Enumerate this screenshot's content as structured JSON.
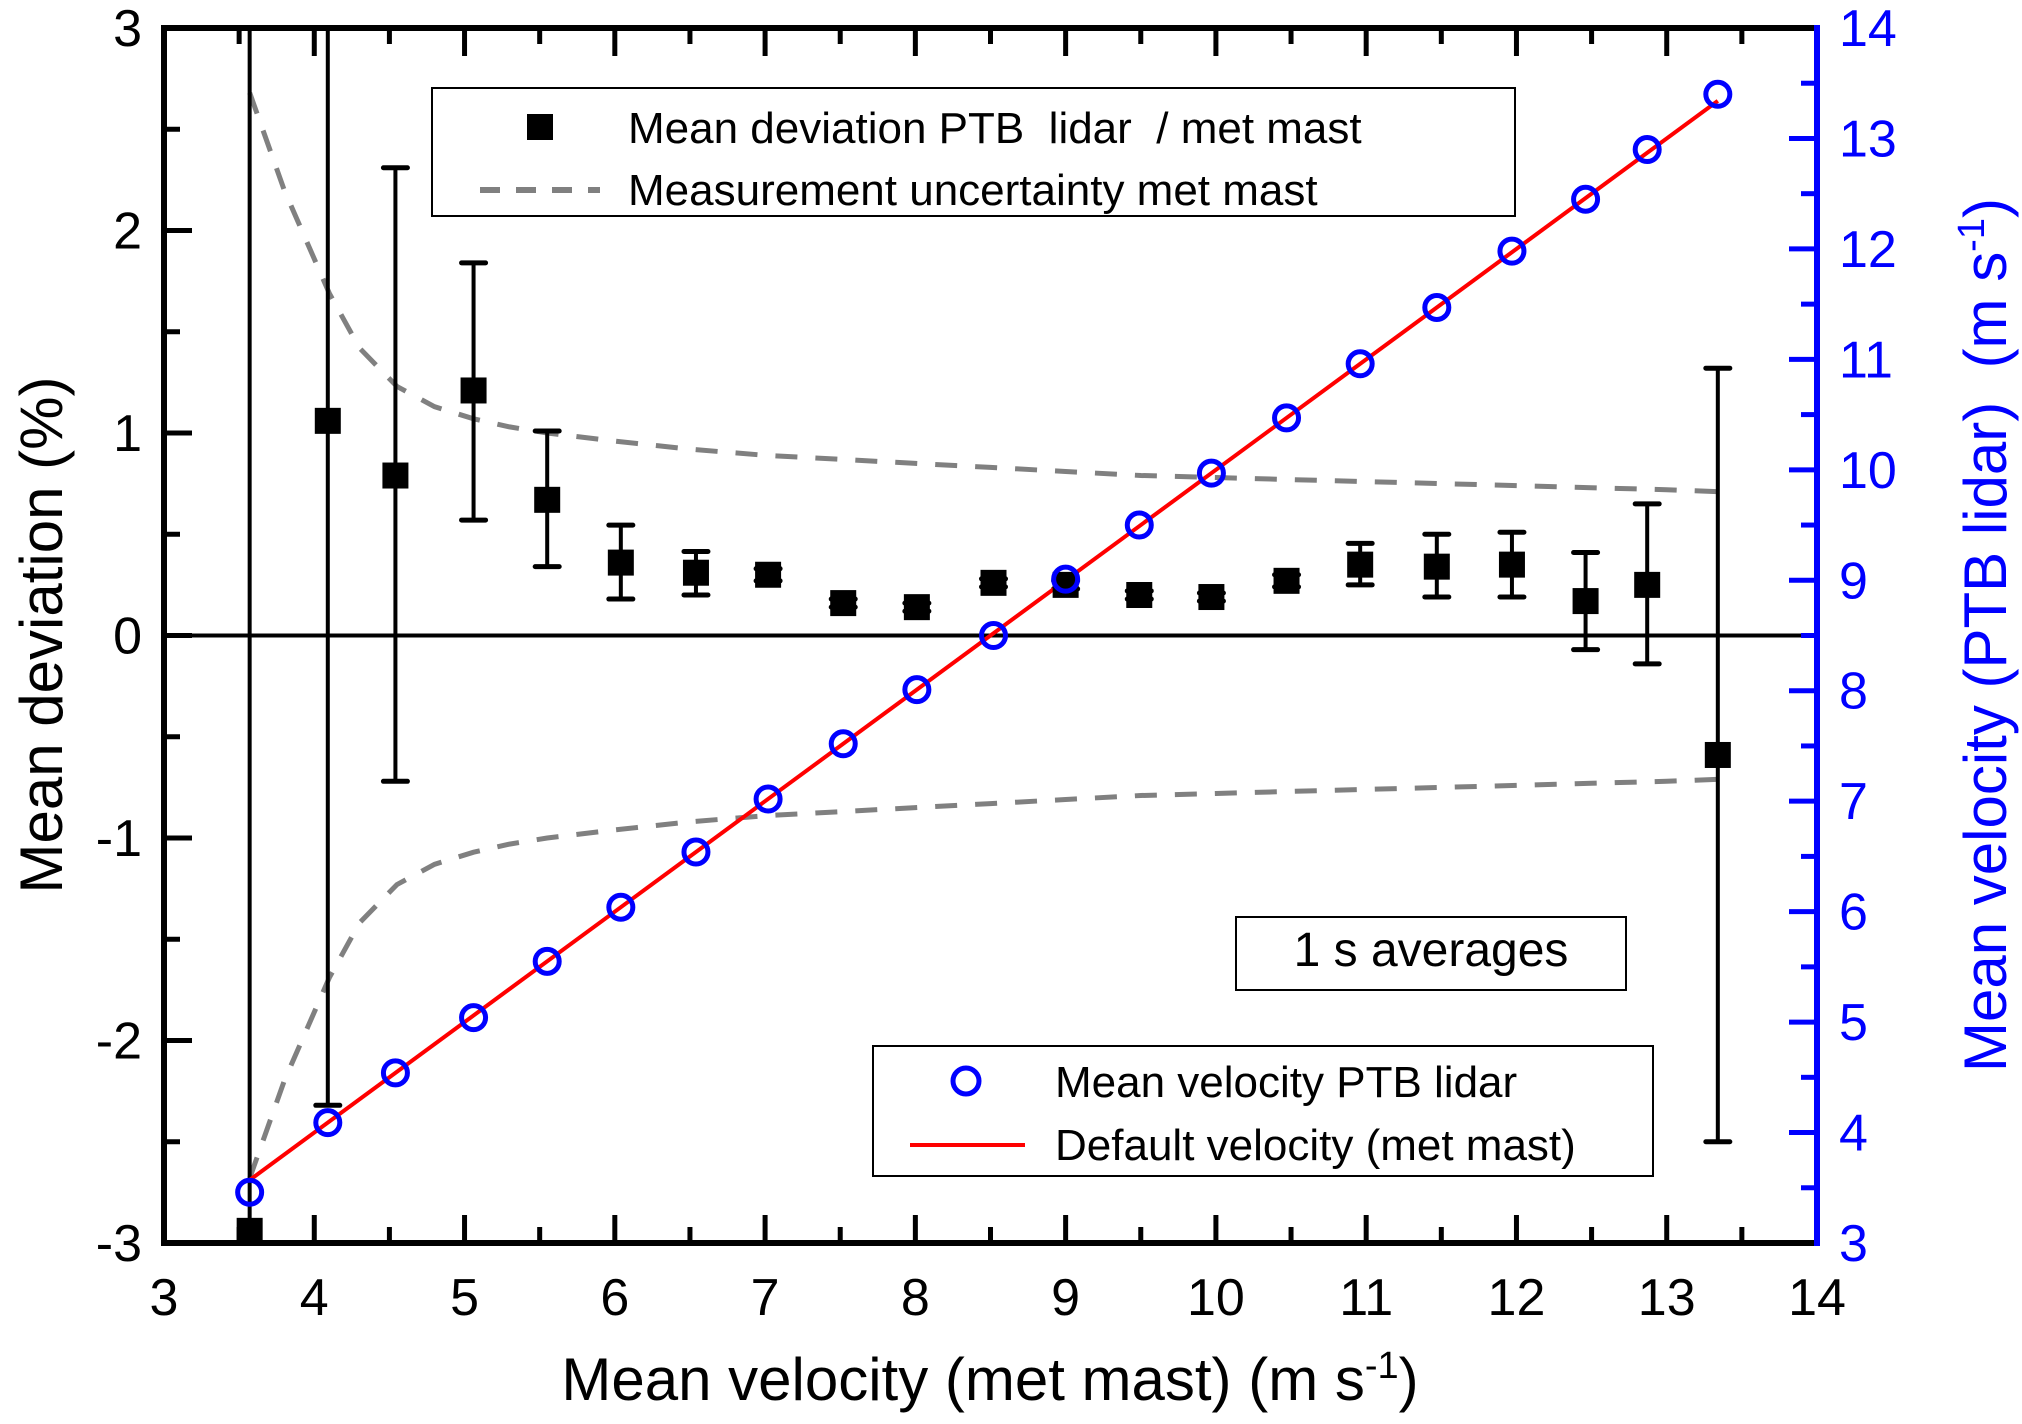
{
  "chart_data": {
    "type": "scatter",
    "title": "",
    "xlabel": "Mean velocity (met mast) (m s",
    "xlabel_sup": "-1",
    "xlabel_end": ")",
    "ylabel_left": "Mean deviation (%)",
    "ylabel_right": "Mean velocity (PTB lidar)  (m s",
    "ylabel_right_sup": "-1",
    "ylabel_right_end": ")",
    "xlim": [
      3,
      14
    ],
    "ylim_left": [
      -3,
      3
    ],
    "ylim_right": [
      3,
      14
    ],
    "x_ticks": [
      "3",
      "4",
      "5",
      "6",
      "7",
      "8",
      "9",
      "10",
      "11",
      "12",
      "13",
      "14"
    ],
    "y_left_ticks": [
      "-3",
      "-2",
      "-1",
      "0",
      "1",
      "2",
      "3"
    ],
    "y_right_ticks": [
      "3",
      "4",
      "5",
      "6",
      "7",
      "8",
      "9",
      "10",
      "11",
      "12",
      "13",
      "14"
    ],
    "grid": false,
    "zero_line": true,
    "colors": {
      "deviation": "#000000",
      "uncertainty": "#808080",
      "lidar": "#0000ff",
      "default_line": "#ff0000",
      "right_axis": "#0000ff"
    },
    "series": [
      {
        "name": "Mean deviation PTB  lidar  / met mast",
        "axis": "left",
        "marker": "filled-square",
        "x": [
          3.57,
          4.09,
          4.54,
          5.06,
          5.55,
          6.04,
          6.54,
          7.02,
          7.52,
          8.01,
          8.52,
          9.0,
          9.49,
          9.97,
          10.47,
          10.96,
          11.47,
          11.97,
          12.46,
          12.87,
          13.34
        ],
        "y": [
          -2.94,
          1.06,
          0.79,
          1.21,
          0.67,
          0.36,
          0.31,
          0.3,
          0.16,
          0.14,
          0.26,
          0.25,
          0.2,
          0.19,
          0.27,
          0.35,
          0.34,
          0.35,
          0.17,
          0.25,
          -0.59
        ],
        "err_low": [
          -3.0,
          -2.32,
          -0.72,
          0.57,
          0.34,
          0.18,
          0.2,
          0.27,
          0.14,
          0.12,
          0.24,
          0.23,
          0.18,
          0.17,
          0.24,
          0.25,
          0.19,
          0.19,
          -0.07,
          -0.14,
          -2.5
        ],
        "err_high": [
          3.0,
          3.0,
          2.31,
          1.84,
          1.01,
          0.545,
          0.415,
          0.33,
          0.18,
          0.16,
          0.28,
          0.27,
          0.22,
          0.21,
          0.3,
          0.455,
          0.5,
          0.51,
          0.41,
          0.65,
          1.32
        ]
      },
      {
        "name": "Measurement uncertainty met mast",
        "axis": "left",
        "style": "dashed",
        "x": [
          3.57,
          3.8,
          4.1,
          4.3,
          4.55,
          4.8,
          5.06,
          5.3,
          5.55,
          6.0,
          6.5,
          7.0,
          7.5,
          8.0,
          8.5,
          9.0,
          9.5,
          10.0,
          10.5,
          11.0,
          11.5,
          12.0,
          12.5,
          13.0,
          13.34
        ],
        "upper": [
          2.68,
          2.2,
          1.69,
          1.42,
          1.23,
          1.13,
          1.07,
          1.03,
          1.0,
          0.96,
          0.92,
          0.89,
          0.87,
          0.85,
          0.83,
          0.81,
          0.79,
          0.78,
          0.77,
          0.76,
          0.75,
          0.74,
          0.73,
          0.72,
          0.71
        ],
        "lower": [
          -2.68,
          -2.2,
          -1.69,
          -1.42,
          -1.23,
          -1.13,
          -1.07,
          -1.03,
          -1.0,
          -0.96,
          -0.92,
          -0.89,
          -0.87,
          -0.85,
          -0.83,
          -0.81,
          -0.79,
          -0.78,
          -0.77,
          -0.76,
          -0.75,
          -0.74,
          -0.73,
          -0.72,
          -0.71
        ]
      },
      {
        "name": "Mean velocity PTB lidar",
        "axis": "right",
        "marker": "open-circle",
        "x": [
          3.57,
          4.09,
          4.54,
          5.06,
          5.55,
          6.04,
          6.54,
          7.02,
          7.52,
          8.01,
          8.52,
          9.0,
          9.49,
          9.97,
          10.47,
          10.96,
          11.47,
          11.97,
          12.46,
          12.87,
          13.34
        ],
        "y": [
          3.46,
          4.09,
          4.54,
          5.04,
          5.55,
          6.04,
          6.54,
          7.02,
          7.52,
          8.01,
          8.5,
          9.01,
          9.5,
          9.97,
          10.47,
          10.96,
          11.47,
          11.98,
          12.45,
          12.9,
          13.4
        ]
      },
      {
        "name": "Default velocity (met mast)",
        "axis": "right",
        "style": "solid",
        "x": [
          3.57,
          13.34
        ],
        "y": [
          3.57,
          13.34
        ]
      }
    ],
    "legends": [
      {
        "position": "top-center",
        "entries": [
          "Mean deviation PTB  lidar  / met mast",
          "Measurement uncertainty met mast"
        ]
      },
      {
        "position": "bottom-right",
        "entries": [
          "Mean velocity PTB lidar",
          "Default velocity (met mast)"
        ]
      }
    ],
    "annotations": [
      "1 s averages"
    ]
  }
}
